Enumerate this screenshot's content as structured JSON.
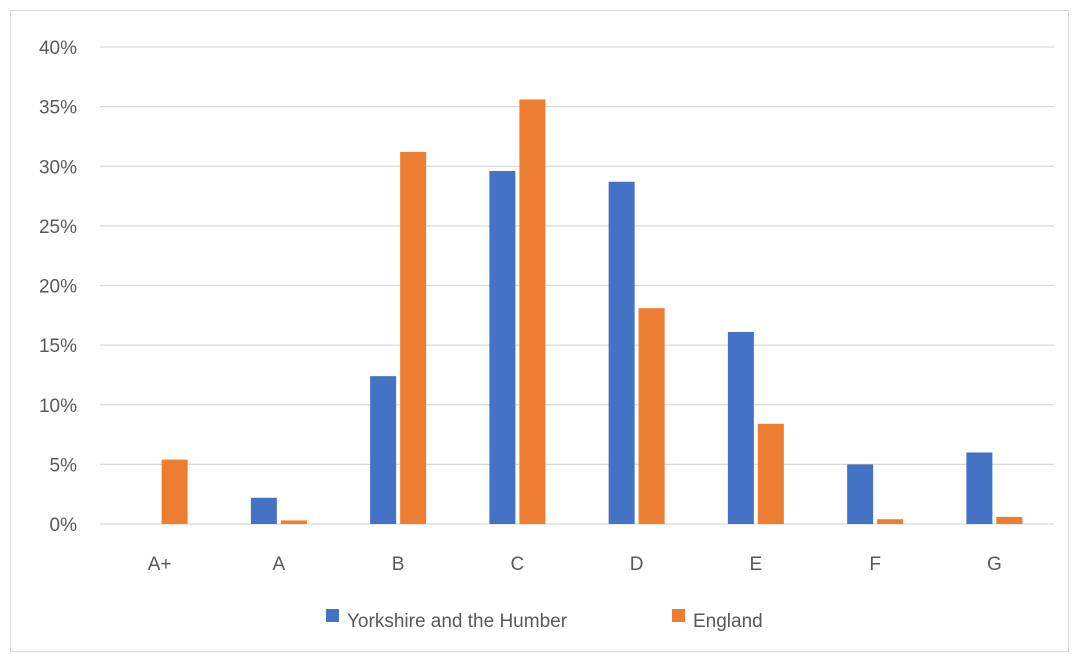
{
  "chart_data": {
    "type": "bar",
    "categories": [
      "A+",
      "A",
      "B",
      "C",
      "D",
      "E",
      "F",
      "G"
    ],
    "series": [
      {
        "name": "Yorkshire and the Humber",
        "color": "#4472c4",
        "values": [
          0,
          2.2,
          12.4,
          29.6,
          28.7,
          16.1,
          5.0,
          6.0
        ]
      },
      {
        "name": "England",
        "color": "#ed7d31",
        "values": [
          5.4,
          0.3,
          31.2,
          35.6,
          18.1,
          8.4,
          0.4,
          0.6
        ]
      }
    ],
    "yticks": [
      "0%",
      "5%",
      "10%",
      "15%",
      "20%",
      "25%",
      "30%",
      "35%",
      "40%"
    ],
    "ylim": [
      0,
      40
    ],
    "grid": true,
    "legend_position": "bottom",
    "gridline_color": "#d9d9d9"
  }
}
